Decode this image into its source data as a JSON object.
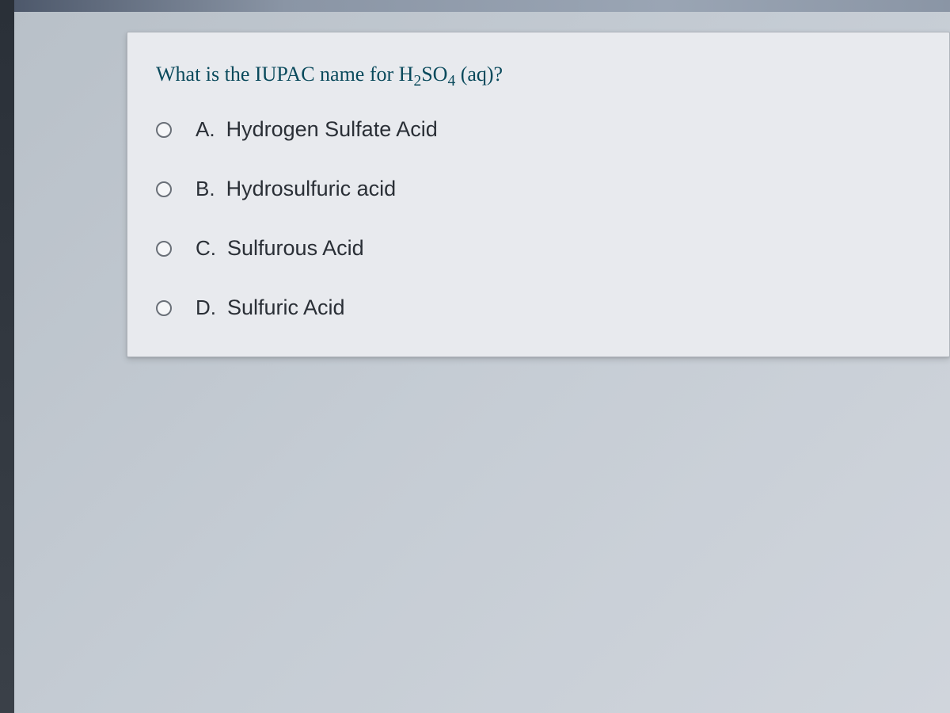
{
  "question": {
    "prompt_prefix": "What is the IUPAC name for H",
    "prompt_sub1": "2",
    "prompt_mid": "SO",
    "prompt_sub2": "4",
    "prompt_suffix": " (aq)?",
    "text_color": "#0a4a5c",
    "font_size": 26
  },
  "options": [
    {
      "letter": "A.",
      "text": "Hydrogen Sulfate Acid"
    },
    {
      "letter": "B.",
      "text": "Hydrosulfuric acid"
    },
    {
      "letter": "C.",
      "text": "Sulfurous Acid"
    },
    {
      "letter": "D.",
      "text": "Sulfuric Acid"
    }
  ],
  "card": {
    "background_color": "#e8eaee",
    "border_color": "#b0b5bc"
  },
  "page": {
    "background_color": "#c5ccd4"
  },
  "radio": {
    "border_color": "#6a7078",
    "fill_color": "#f5f6f8"
  }
}
